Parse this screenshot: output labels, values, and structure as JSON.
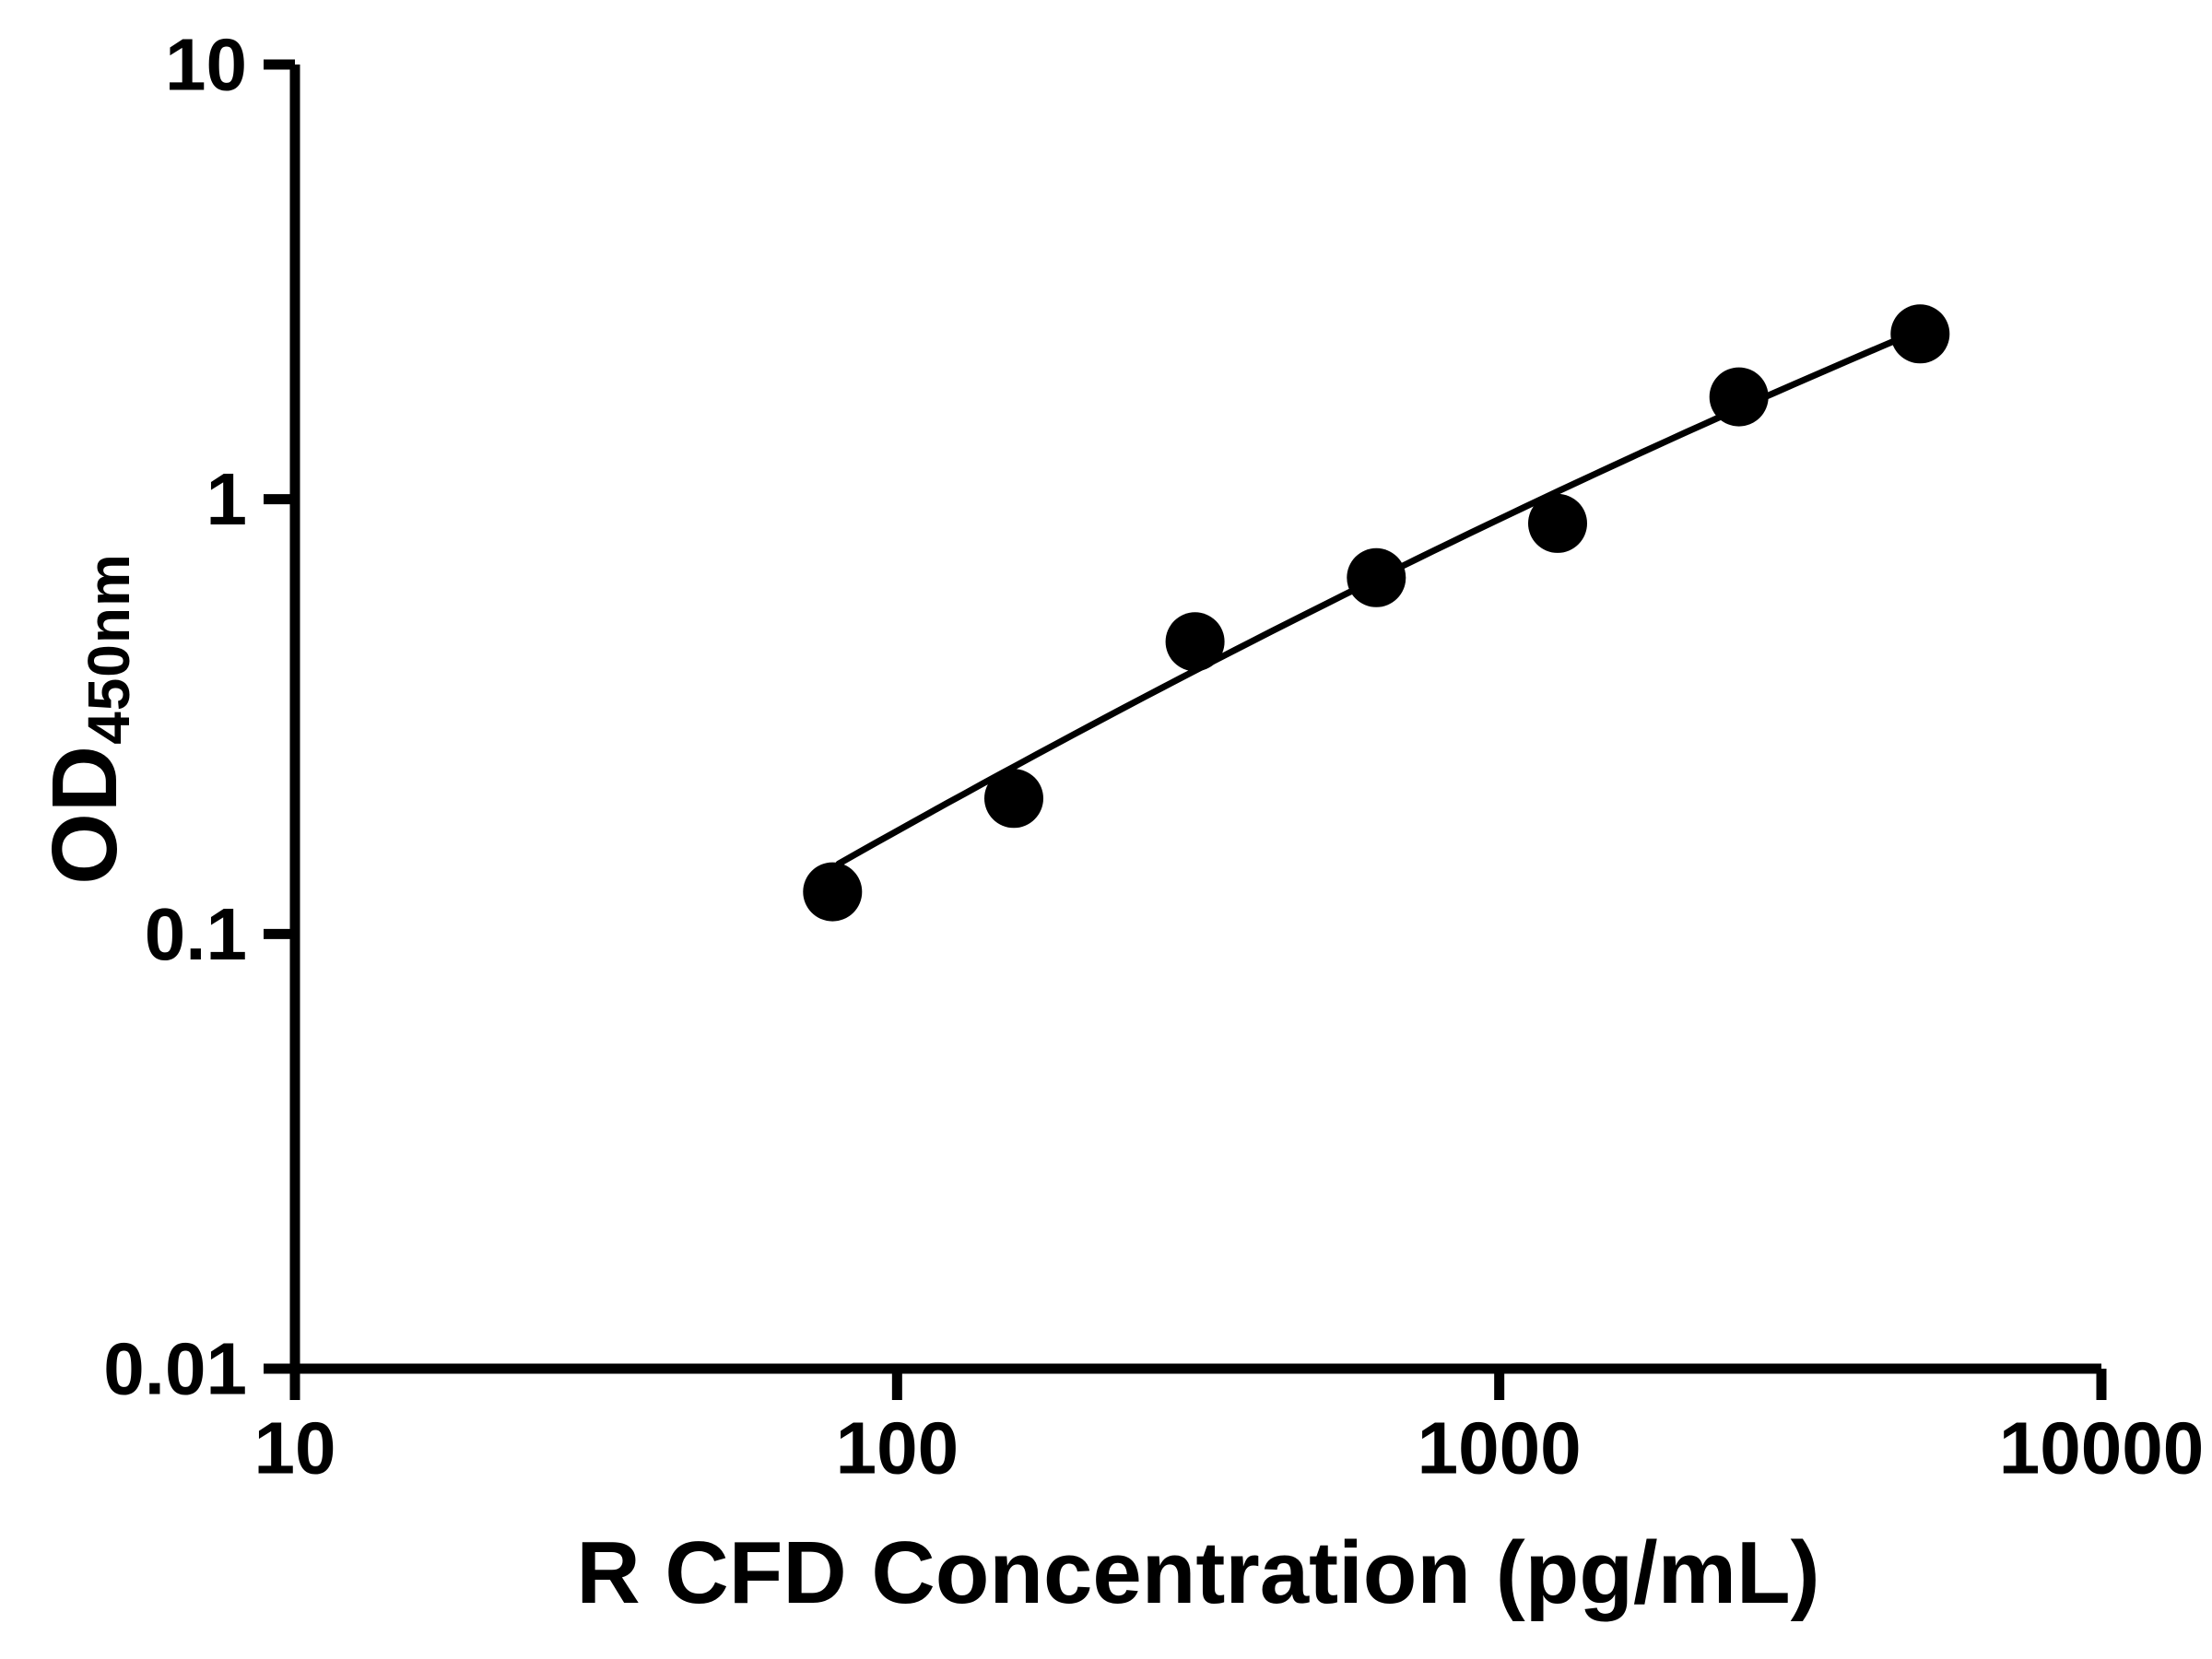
{
  "figure": {
    "background": "#ffffff"
  },
  "chart_data": {
    "type": "scatter",
    "title": "",
    "xlabel": "R CFD Concentration (pg/mL)",
    "ylabel_main": "OD",
    "ylabel_sub": "450nm",
    "x_scale": "log",
    "y_scale": "log",
    "xlim": [
      10,
      10000
    ],
    "ylim": [
      0.01,
      10
    ],
    "grid": "off",
    "legend": "none",
    "color": "#000000",
    "x_ticks": [
      {
        "value": 10,
        "label": "10"
      },
      {
        "value": 100,
        "label": "100"
      },
      {
        "value": 1000,
        "label": "1000"
      },
      {
        "value": 10000,
        "label": "10000"
      }
    ],
    "y_ticks": [
      {
        "value": 10,
        "label": "10"
      },
      {
        "value": 1,
        "label": "1"
      },
      {
        "value": 0.1,
        "label": "0.1"
      },
      {
        "value": 0.01,
        "label": "0.01"
      }
    ],
    "points": [
      {
        "x": 78.125,
        "y": 0.125
      },
      {
        "x": 156.25,
        "y": 0.205
      },
      {
        "x": 312.5,
        "y": 0.47
      },
      {
        "x": 625,
        "y": 0.66
      },
      {
        "x": 1250,
        "y": 0.88
      },
      {
        "x": 2500,
        "y": 1.72
      },
      {
        "x": 5000,
        "y": 2.4
      }
    ],
    "fit_curve": {
      "model": "quadratic-loglog",
      "coeffs": [
        -2.5331,
        0.9968,
        -0.0559
      ],
      "x_range": [
        80,
        5000
      ]
    }
  }
}
